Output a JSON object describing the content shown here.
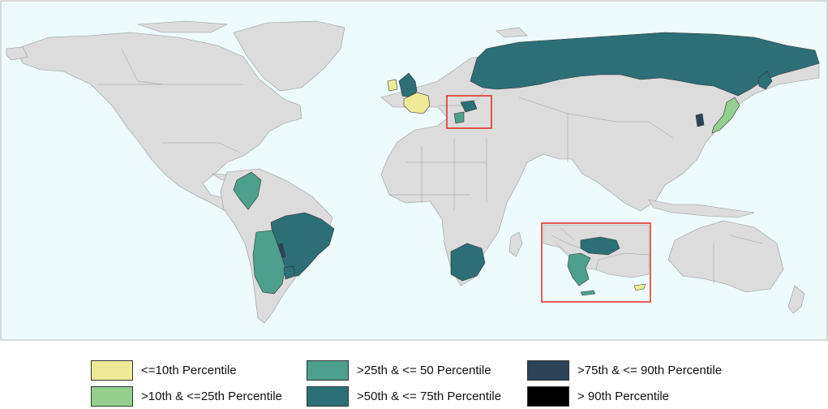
{
  "colors": {
    "ocean": "#edfbfd",
    "land": "#dcdcdc",
    "border": "#9a9a9a",
    "frame": "#b5b5b5",
    "highlight": "#e3261f",
    "p10": "#eeeb98",
    "p25": "#93cf8e",
    "p50": "#4da08c",
    "p75": "#2c6f77",
    "p90": "#2c4458",
    "pmax": "#000000"
  },
  "legend": [
    {
      "label": "<=10th Percentile",
      "color": "#eeeb98"
    },
    {
      "label": ">10th & <=25th Percentile",
      "color": "#93cf8e"
    },
    {
      "label": ">25th & <= 50 Percentile",
      "color": "#4da08c"
    },
    {
      "label": ">50th & <= 75th Percentile",
      "color": "#2c6f77"
    },
    {
      "label": ">75th & <= 90th Percentile",
      "color": "#2c4458"
    },
    {
      "label": "> 90th Percentile",
      "color": "#000000"
    }
  ],
  "regions": [
    {
      "name": "France",
      "class": "<=10th Percentile"
    },
    {
      "name": "Ireland",
      "class": "<=10th Percentile"
    },
    {
      "name": "Cyprus",
      "class": "<=10th Percentile"
    },
    {
      "name": "Japan",
      "class": ">10th & <=25th Percentile"
    },
    {
      "name": "Colombia",
      "class": ">25th & <= 50 Percentile"
    },
    {
      "name": "Argentina",
      "class": ">25th & <= 50 Percentile"
    },
    {
      "name": "Greece",
      "class": ">25th & <= 50 Percentile"
    },
    {
      "name": "Russia",
      "class": ">50th & <= 75th Percentile"
    },
    {
      "name": "United Kingdom",
      "class": ">50th & <= 75th Percentile"
    },
    {
      "name": "Brazil",
      "class": ">50th & <= 75th Percentile"
    },
    {
      "name": "Uruguay",
      "class": ">50th & <= 75th Percentile"
    },
    {
      "name": "South Africa",
      "class": ">50th & <= 75th Percentile"
    },
    {
      "name": "Bulgaria",
      "class": ">50th & <= 75th Percentile"
    },
    {
      "name": "South Korea",
      "class": ">75th & <= 90th Percentile"
    },
    {
      "name": "Paraguay",
      "class": ">75th & <= 90th Percentile"
    }
  ]
}
